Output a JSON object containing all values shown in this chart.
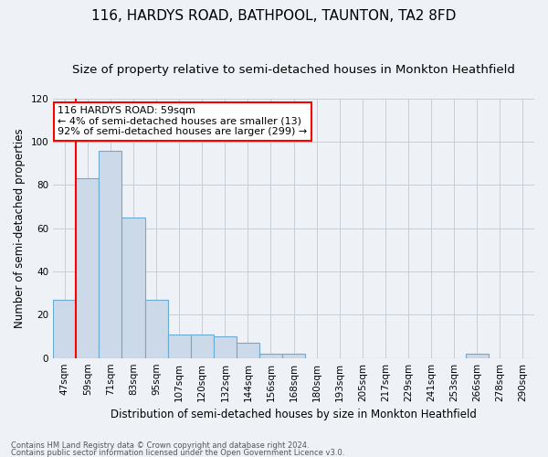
{
  "title": "116, HARDYS ROAD, BATHPOOL, TAUNTON, TA2 8FD",
  "subtitle": "Size of property relative to semi-detached houses in Monkton Heathfield",
  "xlabel": "Distribution of semi-detached houses by size in Monkton Heathfield",
  "ylabel": "Number of semi-detached properties",
  "footnote1": "Contains HM Land Registry data © Crown copyright and database right 2024.",
  "footnote2": "Contains public sector information licensed under the Open Government Licence v3.0.",
  "categories": [
    "47sqm",
    "59sqm",
    "71sqm",
    "83sqm",
    "95sqm",
    "107sqm",
    "120sqm",
    "132sqm",
    "144sqm",
    "156sqm",
    "168sqm",
    "180sqm",
    "193sqm",
    "205sqm",
    "217sqm",
    "229sqm",
    "241sqm",
    "253sqm",
    "266sqm",
    "278sqm",
    "290sqm"
  ],
  "values": [
    27,
    83,
    96,
    65,
    27,
    11,
    11,
    10,
    7,
    2,
    2,
    0,
    0,
    0,
    0,
    0,
    0,
    0,
    2,
    0,
    0
  ],
  "bar_color": "#ccd9e8",
  "bar_edge_color": "#6aaad4",
  "highlight_line_index": 1,
  "highlight_color": "red",
  "annotation_text": "116 HARDYS ROAD: 59sqm\n← 4% of semi-detached houses are smaller (13)\n92% of semi-detached houses are larger (299) →",
  "annotation_box_color": "white",
  "annotation_box_edge_color": "red",
  "ylim": [
    0,
    120
  ],
  "yticks": [
    0,
    20,
    40,
    60,
    80,
    100,
    120
  ],
  "background_color": "#eef2f7",
  "grid_color": "#c5cdd8",
  "title_fontsize": 11,
  "subtitle_fontsize": 9.5,
  "xlabel_fontsize": 8.5,
  "ylabel_fontsize": 8.5,
  "tick_fontsize": 7.5,
  "annot_fontsize": 8
}
